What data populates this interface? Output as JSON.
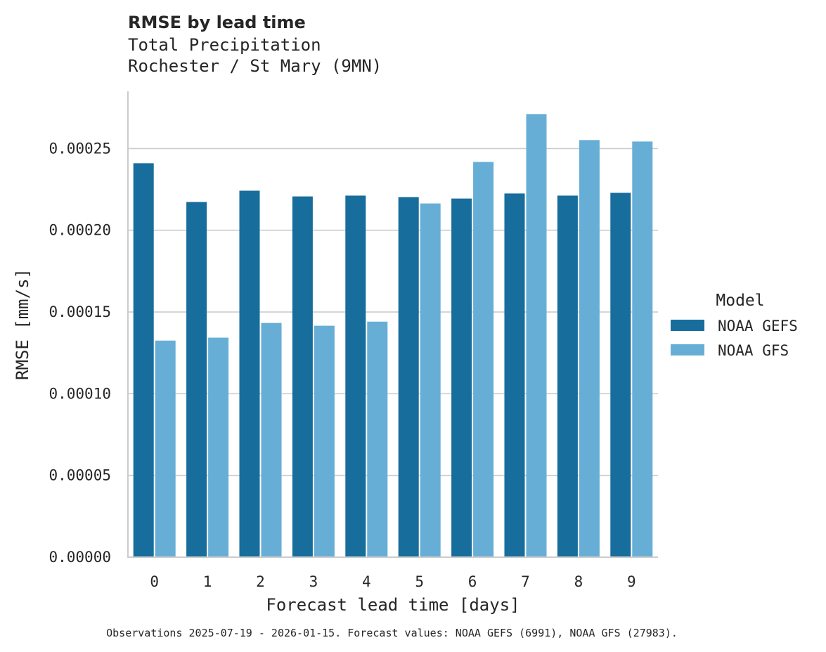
{
  "chart_data": {
    "type": "bar",
    "title": "RMSE by lead time",
    "subtitle": [
      "Total Precipitation",
      "Rochester / St Mary (9MN)"
    ],
    "xlabel": "Forecast lead time [days]",
    "ylabel": "RMSE [mm/s]",
    "categories": [
      "0",
      "1",
      "2",
      "3",
      "4",
      "5",
      "6",
      "7",
      "8",
      "9"
    ],
    "ylim": [
      0,
      0.000285
    ],
    "yticks": [
      0,
      5e-05,
      0.0001,
      0.00015,
      0.0002,
      0.00025
    ],
    "ytick_labels": [
      "0.00000",
      "0.00005",
      "0.00010",
      "0.00015",
      "0.00020",
      "0.00025"
    ],
    "grid": "horizontal",
    "legend": {
      "title": "Model",
      "placement": "right"
    },
    "series": [
      {
        "name": "NOAA GEFS",
        "color": "#176d9c",
        "values": [
          0.000241,
          0.0002173,
          0.0002242,
          0.0002207,
          0.0002212,
          0.0002203,
          0.0002194,
          0.0002225,
          0.0002212,
          0.0002229
        ]
      },
      {
        "name": "NOAA GFS",
        "color": "#67aed6",
        "values": [
          0.0001325,
          0.0001343,
          0.0001433,
          0.0001416,
          0.0001441,
          0.0002164,
          0.0002418,
          0.0002711,
          0.0002552,
          0.0002543
        ]
      }
    ],
    "footnote": "Observations 2025-07-19 - 2026-01-15. Forecast values: NOAA GEFS (6991), NOAA GFS (27983)."
  }
}
